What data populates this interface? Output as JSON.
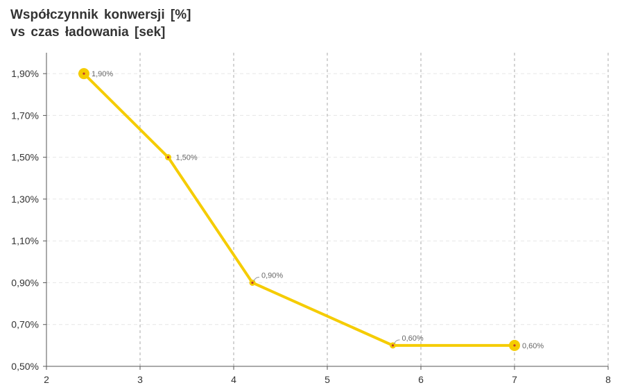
{
  "chart_data": {
    "type": "line",
    "title_lines": [
      "Współczynnik konwersji  [%]",
      "vs czas ładowania  [sek]"
    ],
    "xlabel": "",
    "ylabel": "",
    "xlim": [
      2,
      8
    ],
    "ylim": [
      0.5,
      2.0
    ],
    "x_ticks": [
      2,
      3,
      4,
      5,
      6,
      7,
      8
    ],
    "x_tick_labels": [
      "2",
      "3",
      "4",
      "5",
      "6",
      "7",
      "8"
    ],
    "y_ticks": [
      0.5,
      0.7,
      0.9,
      1.1,
      1.3,
      1.5,
      1.7,
      1.9
    ],
    "y_tick_labels": [
      "0,50%",
      "0,70%",
      "0,90%",
      "1,10%",
      "1,30%",
      "1,50%",
      "1,70%",
      "1,90%"
    ],
    "grid": true,
    "series": [
      {
        "color": "#f5cc00",
        "points": [
          {
            "x": 2.4,
            "y": 1.9,
            "label": "1,90%",
            "big_marker": true
          },
          {
            "x": 3.3,
            "y": 1.5,
            "label": "1,50%",
            "big_marker": false
          },
          {
            "x": 4.2,
            "y": 0.9,
            "label": "0,90%",
            "big_marker": false
          },
          {
            "x": 5.7,
            "y": 0.6,
            "label": "0,60%",
            "big_marker": false
          },
          {
            "x": 7.0,
            "y": 0.6,
            "label": "0,60%",
            "big_marker": true
          }
        ]
      }
    ]
  }
}
